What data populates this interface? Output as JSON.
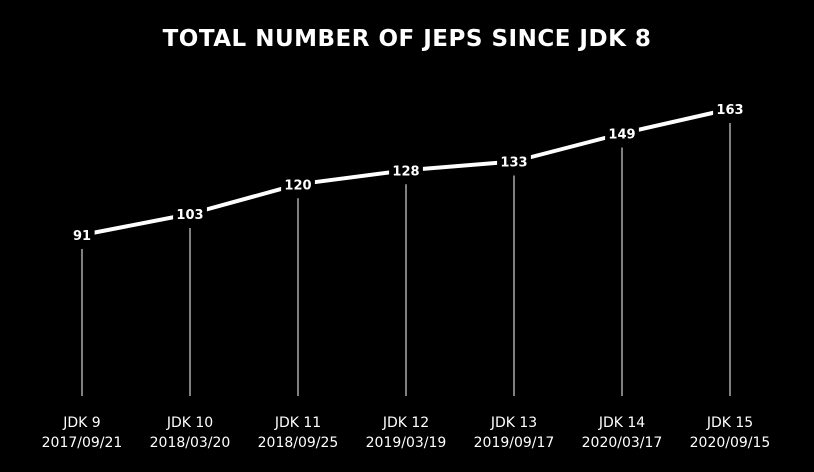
{
  "chart_data": {
    "type": "line",
    "title": "TOTAL NUMBER OF JEPS SINCE JDK 8",
    "xlabel": "",
    "ylabel": "",
    "categories": [
      "JDK 9",
      "JDK 10",
      "JDK 11",
      "JDK 12",
      "JDK 13",
      "JDK 14",
      "JDK 15"
    ],
    "dates": [
      "2017/09/21",
      "2018/03/20",
      "2018/09/25",
      "2019/03/19",
      "2019/09/17",
      "2020/03/17",
      "2020/09/15"
    ],
    "series": [
      {
        "values": [
          91,
          103,
          120,
          128,
          133,
          149,
          163
        ]
      }
    ],
    "ylim": [
      0,
      175
    ],
    "grid": false,
    "legend": "none",
    "colors": {
      "background": "#000000",
      "line": "#ffffff",
      "text": "#ffffff",
      "drop_line": "#ffffff"
    }
  }
}
